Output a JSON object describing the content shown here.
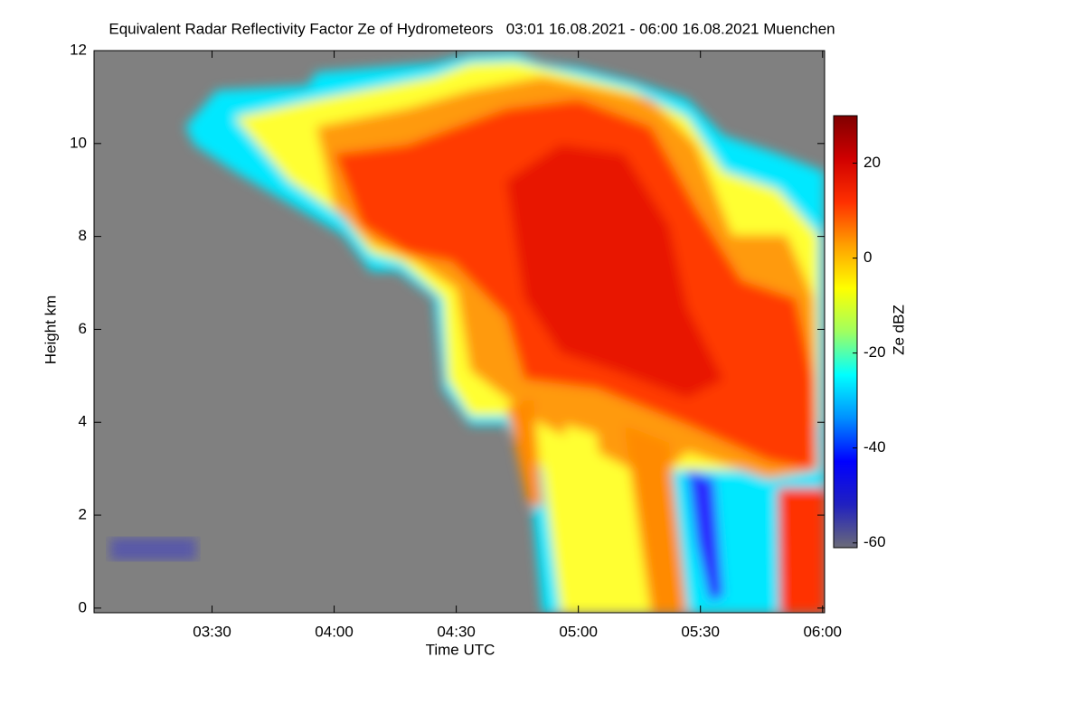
{
  "chart_data": {
    "type": "heatmap",
    "title": "Equivalent Radar Reflectivity Factor Ze of Hydrometeors   03:01 16.08.2021 - 06:00 16.08.2021 Muenchen",
    "xlabel": "Time UTC",
    "ylabel": "Height km",
    "xlim": [
      181,
      360.5
    ],
    "xticks": [
      {
        "value": 210,
        "label": "03:30"
      },
      {
        "value": 240,
        "label": "04:00"
      },
      {
        "value": 270,
        "label": "04:30"
      },
      {
        "value": 300,
        "label": "05:00"
      },
      {
        "value": 330,
        "label": "05:30"
      },
      {
        "value": 360,
        "label": "06:00"
      }
    ],
    "ylim": [
      -0.1,
      12
    ],
    "yticks": [
      0,
      2,
      4,
      6,
      8,
      10,
      12
    ],
    "background": "#808080",
    "colorbar": {
      "label": "Ze dBZ",
      "lim": [
        -61,
        30
      ],
      "ticks": [
        -60,
        -40,
        -20,
        0,
        20
      ],
      "colors": [
        "#6b6b78",
        "#2020c0",
        "#0000ff",
        "#0090ff",
        "#00ffff",
        "#a0ff60",
        "#ffff00",
        "#ffa000",
        "#ff3000",
        "#d00000",
        "#800000"
      ]
    }
  }
}
